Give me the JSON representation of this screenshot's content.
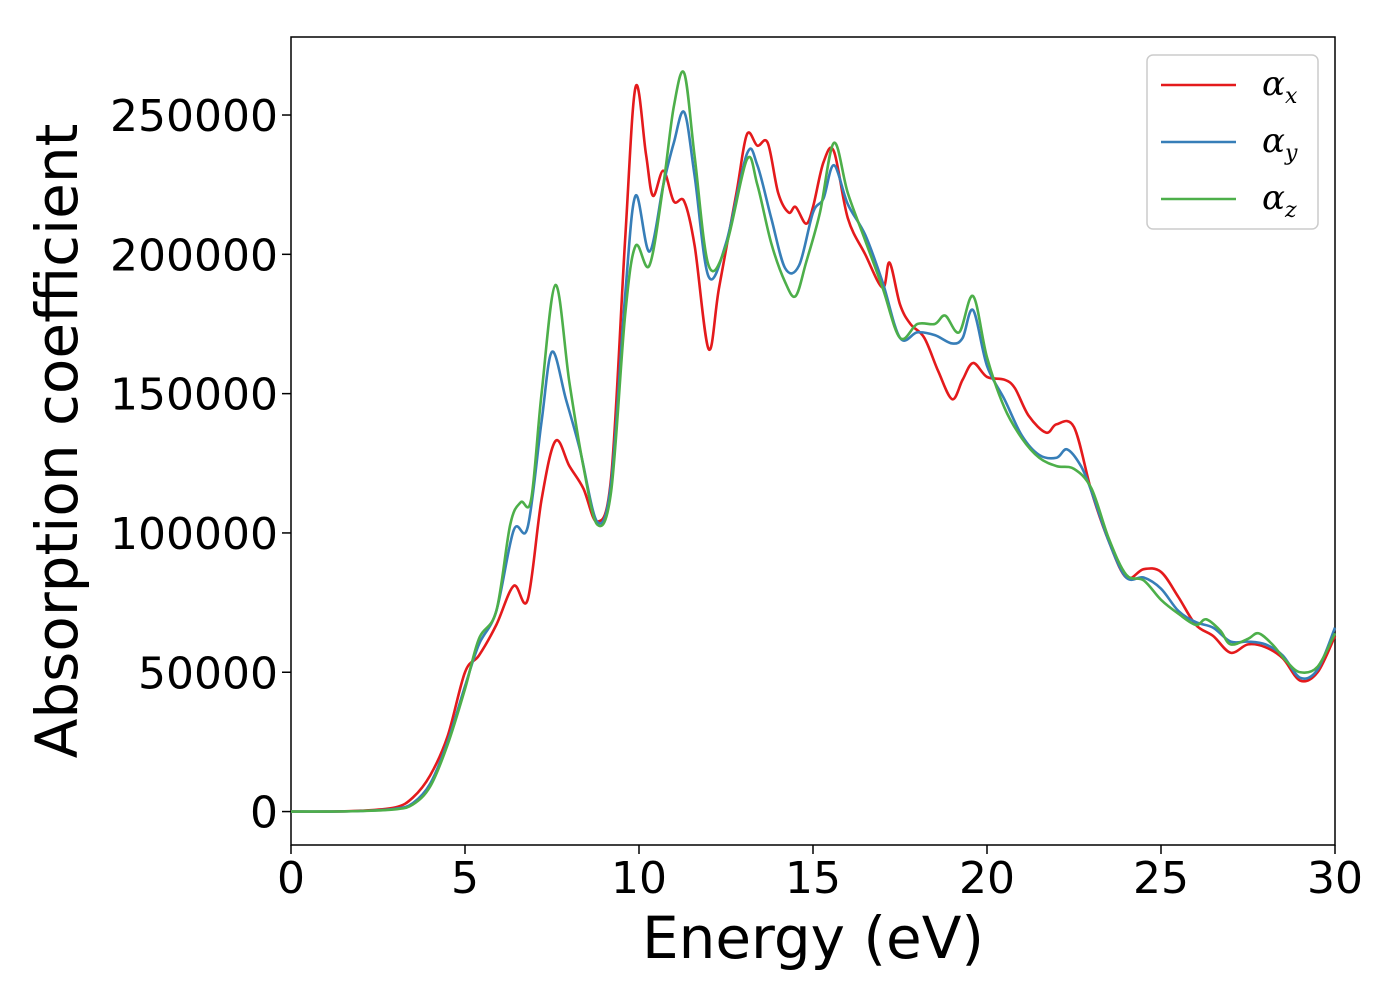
{
  "chart_data": {
    "type": "line",
    "title": "",
    "xlabel": "Energy (eV)",
    "ylabel": "Absorption coefficient",
    "xlim": [
      0,
      30
    ],
    "ylim": [
      -12000,
      278000
    ],
    "xticks": [
      0,
      5,
      10,
      15,
      20,
      25,
      30
    ],
    "yticks": [
      0,
      50000,
      100000,
      150000,
      200000,
      250000
    ],
    "grid": false,
    "legend_position": "top-right",
    "series": [
      {
        "name": "α",
        "subscript": "x",
        "color": "#e41a1c",
        "points": [
          [
            0,
            0
          ],
          [
            1,
            0
          ],
          [
            2,
            300
          ],
          [
            3,
            1500
          ],
          [
            3.5,
            5000
          ],
          [
            4,
            13000
          ],
          [
            4.5,
            27000
          ],
          [
            5,
            50000
          ],
          [
            5.4,
            56000
          ],
          [
            5.9,
            67000
          ],
          [
            6.4,
            81000
          ],
          [
            6.8,
            76000
          ],
          [
            7.2,
            112000
          ],
          [
            7.6,
            133000
          ],
          [
            8.0,
            124000
          ],
          [
            8.4,
            116000
          ],
          [
            8.8,
            104000
          ],
          [
            9.2,
            120000
          ],
          [
            9.6,
            205000
          ],
          [
            9.9,
            260000
          ],
          [
            10.2,
            236000
          ],
          [
            10.4,
            221000
          ],
          [
            10.7,
            230000
          ],
          [
            11.0,
            219000
          ],
          [
            11.3,
            219000
          ],
          [
            11.6,
            203000
          ],
          [
            12.0,
            166000
          ],
          [
            12.3,
            188000
          ],
          [
            12.8,
            222000
          ],
          [
            13.1,
            243000
          ],
          [
            13.4,
            239000
          ],
          [
            13.7,
            240000
          ],
          [
            14.0,
            222000
          ],
          [
            14.3,
            215000
          ],
          [
            14.5,
            217000
          ],
          [
            14.8,
            211000
          ],
          [
            15.0,
            217000
          ],
          [
            15.3,
            233000
          ],
          [
            15.6,
            237000
          ],
          [
            16.0,
            213000
          ],
          [
            16.5,
            200000
          ],
          [
            17.0,
            188000
          ],
          [
            17.2,
            197000
          ],
          [
            17.5,
            182000
          ],
          [
            17.8,
            175000
          ],
          [
            18.2,
            170000
          ],
          [
            18.6,
            158000
          ],
          [
            19.0,
            148000
          ],
          [
            19.3,
            155000
          ],
          [
            19.6,
            161000
          ],
          [
            20.0,
            156000
          ],
          [
            20.5,
            155000
          ],
          [
            20.8,
            152000
          ],
          [
            21.2,
            142000
          ],
          [
            21.7,
            136000
          ],
          [
            22.0,
            139000
          ],
          [
            22.5,
            138000
          ],
          [
            23.0,
            115000
          ],
          [
            23.5,
            97000
          ],
          [
            24.0,
            84000
          ],
          [
            24.5,
            87000
          ],
          [
            25.0,
            86000
          ],
          [
            25.5,
            77000
          ],
          [
            26.0,
            67000
          ],
          [
            26.5,
            63000
          ],
          [
            27.0,
            57000
          ],
          [
            27.5,
            60000
          ],
          [
            28.0,
            59000
          ],
          [
            28.5,
            55000
          ],
          [
            29.0,
            47000
          ],
          [
            29.5,
            50000
          ],
          [
            30.0,
            63000
          ]
        ]
      },
      {
        "name": "α",
        "subscript": "y",
        "color": "#377eb8",
        "points": [
          [
            0,
            0
          ],
          [
            1,
            0
          ],
          [
            2,
            200
          ],
          [
            3,
            1000
          ],
          [
            3.5,
            3000
          ],
          [
            4,
            10000
          ],
          [
            4.5,
            25000
          ],
          [
            5,
            45000
          ],
          [
            5.4,
            60000
          ],
          [
            5.9,
            72000
          ],
          [
            6.4,
            101000
          ],
          [
            6.8,
            102000
          ],
          [
            7.2,
            140000
          ],
          [
            7.5,
            165000
          ],
          [
            7.9,
            148000
          ],
          [
            8.3,
            130000
          ],
          [
            8.8,
            104000
          ],
          [
            9.2,
            118000
          ],
          [
            9.6,
            185000
          ],
          [
            9.9,
            221000
          ],
          [
            10.3,
            201000
          ],
          [
            10.7,
            225000
          ],
          [
            11.0,
            240000
          ],
          [
            11.3,
            251000
          ],
          [
            11.6,
            228000
          ],
          [
            12.0,
            192000
          ],
          [
            12.5,
            204000
          ],
          [
            13.1,
            236000
          ],
          [
            13.4,
            232000
          ],
          [
            13.8,
            213000
          ],
          [
            14.2,
            195000
          ],
          [
            14.6,
            196000
          ],
          [
            15.0,
            215000
          ],
          [
            15.3,
            220000
          ],
          [
            15.6,
            232000
          ],
          [
            16.0,
            218000
          ],
          [
            16.5,
            207000
          ],
          [
            17.0,
            190000
          ],
          [
            17.5,
            170000
          ],
          [
            18.0,
            172000
          ],
          [
            18.5,
            171000
          ],
          [
            19.0,
            168000
          ],
          [
            19.3,
            170000
          ],
          [
            19.6,
            180000
          ],
          [
            20.0,
            160000
          ],
          [
            20.5,
            148000
          ],
          [
            21.0,
            135000
          ],
          [
            21.5,
            128000
          ],
          [
            22.0,
            127000
          ],
          [
            22.3,
            130000
          ],
          [
            22.7,
            124000
          ],
          [
            23.0,
            115000
          ],
          [
            23.5,
            97000
          ],
          [
            24.0,
            84000
          ],
          [
            24.5,
            84000
          ],
          [
            25.0,
            80000
          ],
          [
            25.5,
            72000
          ],
          [
            26.0,
            68000
          ],
          [
            26.5,
            66000
          ],
          [
            27.0,
            61000
          ],
          [
            27.5,
            61000
          ],
          [
            28.0,
            60000
          ],
          [
            28.5,
            56000
          ],
          [
            29.0,
            48000
          ],
          [
            29.5,
            51000
          ],
          [
            30.0,
            66000
          ]
        ]
      },
      {
        "name": "α",
        "subscript": "z",
        "color": "#4daf4a",
        "points": [
          [
            0,
            0
          ],
          [
            1,
            0
          ],
          [
            2,
            200
          ],
          [
            3,
            800
          ],
          [
            3.5,
            2500
          ],
          [
            4,
            9000
          ],
          [
            4.5,
            24000
          ],
          [
            5,
            44000
          ],
          [
            5.4,
            62000
          ],
          [
            5.9,
            72000
          ],
          [
            6.3,
            103000
          ],
          [
            6.6,
            111000
          ],
          [
            6.9,
            112000
          ],
          [
            7.2,
            150000
          ],
          [
            7.6,
            189000
          ],
          [
            8.0,
            154000
          ],
          [
            8.4,
            124000
          ],
          [
            8.8,
            103000
          ],
          [
            9.2,
            115000
          ],
          [
            9.6,
            178000
          ],
          [
            9.9,
            203000
          ],
          [
            10.3,
            196000
          ],
          [
            10.7,
            225000
          ],
          [
            11.0,
            253000
          ],
          [
            11.3,
            265000
          ],
          [
            11.6,
            235000
          ],
          [
            12.0,
            196000
          ],
          [
            12.5,
            203000
          ],
          [
            13.1,
            234000
          ],
          [
            13.4,
            225000
          ],
          [
            13.8,
            204000
          ],
          [
            14.2,
            190000
          ],
          [
            14.5,
            185000
          ],
          [
            14.8,
            197000
          ],
          [
            15.2,
            215000
          ],
          [
            15.6,
            240000
          ],
          [
            16.0,
            222000
          ],
          [
            16.5,
            205000
          ],
          [
            17.0,
            188000
          ],
          [
            17.5,
            170000
          ],
          [
            18.0,
            175000
          ],
          [
            18.5,
            175000
          ],
          [
            18.8,
            178000
          ],
          [
            19.2,
            172000
          ],
          [
            19.6,
            185000
          ],
          [
            20.0,
            163000
          ],
          [
            20.5,
            145000
          ],
          [
            21.0,
            134000
          ],
          [
            21.5,
            127000
          ],
          [
            22.0,
            124000
          ],
          [
            22.5,
            123000
          ],
          [
            23.0,
            116000
          ],
          [
            23.5,
            98000
          ],
          [
            24.0,
            85000
          ],
          [
            24.5,
            83000
          ],
          [
            25.0,
            76000
          ],
          [
            25.5,
            71000
          ],
          [
            26.0,
            67000
          ],
          [
            26.3,
            69000
          ],
          [
            26.7,
            65000
          ],
          [
            27.0,
            60000
          ],
          [
            27.5,
            62000
          ],
          [
            27.8,
            64000
          ],
          [
            28.2,
            60000
          ],
          [
            28.6,
            54000
          ],
          [
            29.0,
            50000
          ],
          [
            29.5,
            52000
          ],
          [
            30.0,
            64000
          ]
        ]
      }
    ]
  }
}
